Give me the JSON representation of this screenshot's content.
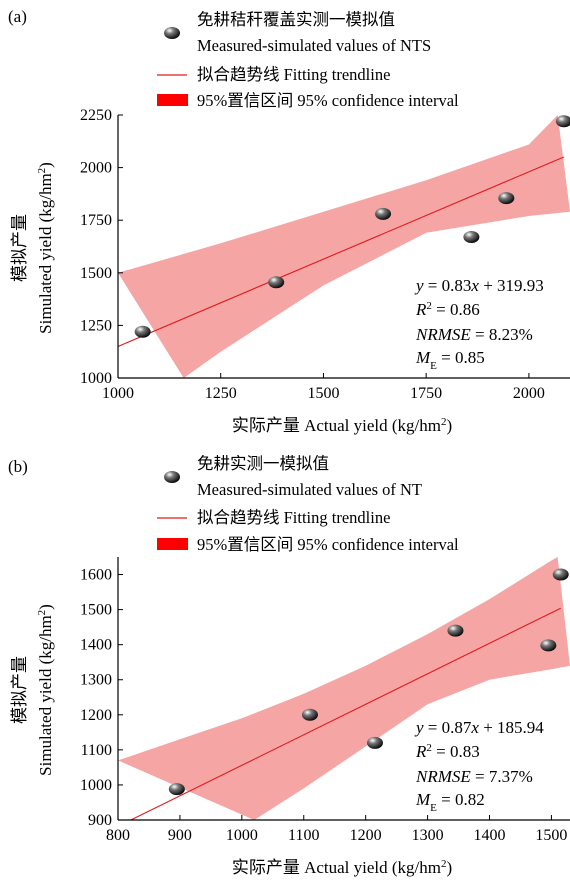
{
  "charts": [
    {
      "panel_label": "(a)",
      "legend": {
        "points_line1": "免耕秸秆覆盖实测一模拟值",
        "points_line2": "Measured-simulated values of NTS",
        "trend": "拟合趋势线 Fitting trendline",
        "ci": "95%置信区间 95% confidence interval"
      },
      "xlabel": "实际产量 Actual yield (kg/hm²)",
      "ylabel_cn": "模拟产量",
      "ylabel_en": "Simulated yield (kg/hm²)",
      "xticks": [
        "1000",
        "1250",
        "1500",
        "1750",
        "2000"
      ],
      "yticks": [
        "1000",
        "1250",
        "1500",
        "1750",
        "2000",
        "2250"
      ],
      "equation": "y = 0.83x + 319.93",
      "r2": "R² = 0.86",
      "nrmse": "NRMSE = 8.23%",
      "me": "ME = 0.85"
    },
    {
      "panel_label": "(b)",
      "legend": {
        "points_line1": "免耕实测一模拟值",
        "points_line2": "Measured-simulated values of NT",
        "trend": "拟合趋势线 Fitting trendline",
        "ci": "95%置信区间 95% confidence interval"
      },
      "xlabel": "实际产量 Actual yield (kg/hm²)",
      "ylabel_cn": "模拟产量",
      "ylabel_en": "Simulated yield (kg/hm²)",
      "xticks": [
        "800",
        "900",
        "1000",
        "1100",
        "1200",
        "1300",
        "1400",
        "1500"
      ],
      "yticks": [
        "900",
        "1000",
        "1100",
        "1200",
        "1300",
        "1400",
        "1500",
        "1600"
      ],
      "equation": "y = 0.87x + 185.94",
      "r2": "R² = 0.83",
      "nrmse": "NRMSE = 7.37%",
      "me": "ME = 0.82"
    }
  ],
  "chart_data": [
    {
      "type": "scatter",
      "xlim": [
        1000,
        2100
      ],
      "ylim": [
        1000,
        2250
      ],
      "points": [
        {
          "x": 1060,
          "y": 1220
        },
        {
          "x": 1385,
          "y": 1455
        },
        {
          "x": 1645,
          "y": 1780
        },
        {
          "x": 1860,
          "y": 1670
        },
        {
          "x": 1945,
          "y": 1855
        },
        {
          "x": 2085,
          "y": 2220
        }
      ],
      "trendline": {
        "slope": 0.83,
        "intercept": 319.93
      },
      "confidence_band": {
        "upper": [
          [
            1000,
            1500
          ],
          [
            1250,
            1640
          ],
          [
            1500,
            1790
          ],
          [
            1750,
            1940
          ],
          [
            2000,
            2110
          ],
          [
            2070,
            2250
          ]
        ],
        "lower": [
          [
            1160,
            1000
          ],
          [
            1250,
            1125
          ],
          [
            1500,
            1440
          ],
          [
            1750,
            1690
          ],
          [
            2000,
            1770
          ],
          [
            2100,
            1790
          ]
        ]
      },
      "colors": {
        "trendline": "#e31a1c",
        "band": "#f6a5a5",
        "points": "#111111"
      }
    },
    {
      "type": "scatter",
      "xlim": [
        800,
        1530
      ],
      "ylim": [
        900,
        1650
      ],
      "points": [
        {
          "x": 895,
          "y": 988
        },
        {
          "x": 1110,
          "y": 1200
        },
        {
          "x": 1215,
          "y": 1120
        },
        {
          "x": 1345,
          "y": 1440
        },
        {
          "x": 1495,
          "y": 1398
        },
        {
          "x": 1515,
          "y": 1600
        }
      ],
      "trendline": {
        "slope": 0.87,
        "intercept": 185.94
      },
      "confidence_band": {
        "upper": [
          [
            800,
            1070
          ],
          [
            900,
            1130
          ],
          [
            1000,
            1190
          ],
          [
            1100,
            1260
          ],
          [
            1200,
            1340
          ],
          [
            1300,
            1430
          ],
          [
            1400,
            1530
          ],
          [
            1500,
            1640
          ],
          [
            1510,
            1650
          ]
        ],
        "lower": [
          [
            1020,
            900
          ],
          [
            1100,
            990
          ],
          [
            1200,
            1110
          ],
          [
            1300,
            1230
          ],
          [
            1400,
            1300
          ],
          [
            1500,
            1330
          ],
          [
            1530,
            1340
          ]
        ]
      },
      "colors": {
        "trendline": "#e31a1c",
        "band": "#f6a5a5",
        "points": "#111111"
      }
    }
  ]
}
